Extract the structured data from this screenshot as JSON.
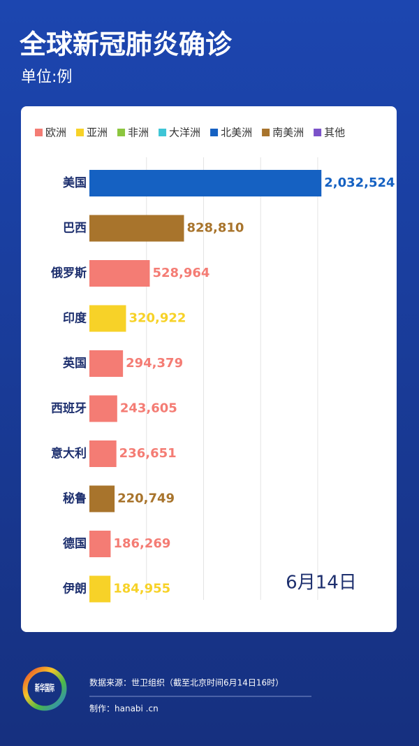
{
  "chart_data": {
    "type": "hbar",
    "title": "全球新冠肺炎确诊",
    "subtitle": "单位:例",
    "annotation": "6月14日",
    "categories": [
      "美国",
      "巴西",
      "俄罗斯",
      "印度",
      "英国",
      "西班牙",
      "意大利",
      "秘鲁",
      "德国",
      "伊朗"
    ],
    "series": [
      {
        "name": "欧洲",
        "color": "#f47c74",
        "values": [
          null,
          null,
          528964,
          null,
          294379,
          243605,
          236651,
          null,
          186269,
          null
        ],
        "value_labels": [
          null,
          null,
          "528,964",
          null,
          "294,379",
          "243,605",
          "236,651",
          null,
          "186,269",
          null
        ]
      },
      {
        "name": "亚洲",
        "color": "#f7d228",
        "values": [
          null,
          null,
          null,
          320922,
          null,
          null,
          null,
          null,
          null,
          184955
        ],
        "value_labels": [
          null,
          null,
          null,
          "320,922",
          null,
          null,
          null,
          null,
          null,
          "184,955"
        ]
      },
      {
        "name": "非洲",
        "color": "#8cc63f",
        "values": [
          null,
          null,
          null,
          null,
          null,
          null,
          null,
          null,
          null,
          null
        ],
        "value_labels": [
          null,
          null,
          null,
          null,
          null,
          null,
          null,
          null,
          null,
          null
        ]
      },
      {
        "name": "大洋洲",
        "color": "#3ec5d6",
        "values": [
          null,
          null,
          null,
          null,
          null,
          null,
          null,
          null,
          null,
          null
        ],
        "value_labels": [
          null,
          null,
          null,
          null,
          null,
          null,
          null,
          null,
          null,
          null
        ]
      },
      {
        "name": "北美洲",
        "color": "#1561c2",
        "values": [
          2032524,
          null,
          null,
          null,
          null,
          null,
          null,
          null,
          null,
          null
        ],
        "value_labels": [
          "2,032,524",
          null,
          null,
          null,
          null,
          null,
          null,
          null,
          null,
          null
        ]
      },
      {
        "name": "南美洲",
        "color": "#a8742c",
        "values": [
          null,
          828810,
          null,
          null,
          null,
          null,
          null,
          220749,
          null,
          null
        ],
        "value_labels": [
          null,
          "828,810",
          null,
          null,
          null,
          null,
          null,
          "220,749",
          null,
          null
        ]
      },
      {
        "name": "其他",
        "color": "#7b52c9",
        "values": [
          null,
          null,
          null,
          null,
          null,
          null,
          null,
          null,
          null,
          null
        ],
        "value_labels": [
          null,
          null,
          null,
          null,
          null,
          null,
          null,
          null,
          null,
          null
        ]
      }
    ],
    "xlim": [
      0,
      2600000
    ],
    "xticks": [
      0,
      500000,
      1000000,
      1500000,
      2000000
    ],
    "grid": true
  },
  "footer": {
    "logo": "新华国际",
    "source": "数据来源：世卫组织（截至北京时间6月14日16时）",
    "credit": "制作：hanabi .cn"
  }
}
